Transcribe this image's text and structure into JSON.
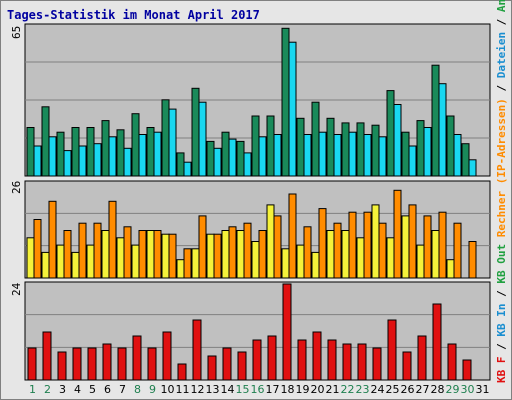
{
  "title": "Tages-Statistik im Monat April 2017",
  "colors": {
    "seiten": "#1a8a5a",
    "dateien": "#19d7f0",
    "anfragen_highlight": "#40a070",
    "besuche": "#f5f23a",
    "kbin": "#ff8c00",
    "kbout": "#e01010",
    "weekend_label": "#208050",
    "weekday_label": "#000000",
    "plot_bg": "#c0c0c0"
  },
  "legend": [
    {
      "text": "KB F",
      "color": "#e01010"
    },
    {
      "text": " / ",
      "color": "#000000"
    },
    {
      "text": "KB In",
      "color": "#1a8ed0"
    },
    {
      "text": " / ",
      "color": "#000000"
    },
    {
      "text": "KB Out",
      "color": "#20a040"
    },
    {
      "text": " ",
      "color": "#000000"
    },
    {
      "text": "Rechner (IP-Adressen)",
      "color": "#ff8c00"
    },
    {
      "text": " / ",
      "color": "#000000"
    },
    {
      "text": "Dateien",
      "color": "#1a8ed0"
    },
    {
      "text": " / ",
      "color": "#000000"
    },
    {
      "text": "Anfragen",
      "color": "#20a040"
    }
  ],
  "chart_data": [
    {
      "type": "bar",
      "title": "Tages-Statistik im Monat April 2017",
      "panel": "top",
      "ymax_label": "65",
      "ylim": [
        0,
        65
      ],
      "categories": [
        "1",
        "2",
        "3",
        "4",
        "5",
        "6",
        "7",
        "8",
        "9",
        "10",
        "11",
        "12",
        "13",
        "14",
        "15",
        "16",
        "17",
        "18",
        "19",
        "20",
        "21",
        "22",
        "23",
        "24",
        "25",
        "26",
        "27",
        "28",
        "29",
        "30",
        "31"
      ],
      "series": [
        {
          "key": "a",
          "values": [
            21,
            30,
            19,
            21,
            21,
            24,
            20,
            27,
            21,
            33,
            10,
            38,
            15,
            19,
            15,
            26,
            26,
            64,
            25,
            32,
            25,
            23,
            23,
            22,
            37,
            19,
            24,
            48,
            26,
            14,
            0
          ]
        },
        {
          "key": "b",
          "values": [
            13,
            17,
            11,
            13,
            14,
            17,
            12,
            18,
            19,
            29,
            6,
            32,
            12,
            16,
            10,
            17,
            18,
            58,
            18,
            19,
            18,
            19,
            18,
            17,
            31,
            13,
            21,
            40,
            18,
            7,
            0
          ]
        }
      ]
    },
    {
      "type": "bar",
      "panel": "middle",
      "ymax_label": "26",
      "ylim": [
        0,
        26
      ],
      "categories": [
        "1",
        "2",
        "3",
        "4",
        "5",
        "6",
        "7",
        "8",
        "9",
        "10",
        "11",
        "12",
        "13",
        "14",
        "15",
        "16",
        "17",
        "18",
        "19",
        "20",
        "21",
        "22",
        "23",
        "24",
        "25",
        "26",
        "27",
        "28",
        "29",
        "30",
        "31"
      ],
      "series": [
        {
          "key": "a",
          "values": [
            11,
            7,
            9,
            7,
            9,
            13,
            11,
            9,
            13,
            12,
            5,
            8,
            12,
            13,
            13,
            10,
            20,
            8,
            9,
            7,
            13,
            13,
            11,
            20,
            11,
            17,
            9,
            13,
            5,
            0,
            0
          ]
        },
        {
          "key": "b",
          "values": [
            16,
            21,
            13,
            15,
            15,
            21,
            14,
            13,
            13,
            12,
            8,
            17,
            12,
            14,
            15,
            13,
            17,
            23,
            14,
            19,
            15,
            18,
            18,
            15,
            24,
            20,
            17,
            18,
            15,
            10,
            0
          ]
        }
      ]
    },
    {
      "type": "bar",
      "panel": "bottom",
      "ymax_label": "24",
      "ylim": [
        0,
        24
      ],
      "categories": [
        "1",
        "2",
        "3",
        "4",
        "5",
        "6",
        "7",
        "8",
        "9",
        "10",
        "11",
        "12",
        "13",
        "14",
        "15",
        "16",
        "17",
        "18",
        "19",
        "20",
        "21",
        "22",
        "23",
        "24",
        "25",
        "26",
        "27",
        "28",
        "29",
        "30",
        "31"
      ],
      "series": [
        {
          "key": "kbf",
          "values": [
            8,
            12,
            7,
            8,
            8,
            9,
            8,
            11,
            8,
            12,
            4,
            15,
            6,
            8,
            7,
            10,
            11,
            24,
            10,
            12,
            10,
            9,
            9,
            8,
            15,
            7,
            11,
            19,
            9,
            5,
            0
          ]
        }
      ]
    }
  ],
  "xaxis": {
    "labels": [
      "1",
      "2",
      "3",
      "4",
      "5",
      "6",
      "7",
      "8",
      "9",
      "10",
      "11",
      "12",
      "13",
      "14",
      "15",
      "16",
      "17",
      "18",
      "19",
      "20",
      "21",
      "22",
      "23",
      "24",
      "25",
      "26",
      "27",
      "28",
      "29",
      "30",
      "31"
    ],
    "weekend": [
      "1",
      "2",
      "8",
      "9",
      "15",
      "16",
      "22",
      "23",
      "29",
      "30"
    ]
  }
}
